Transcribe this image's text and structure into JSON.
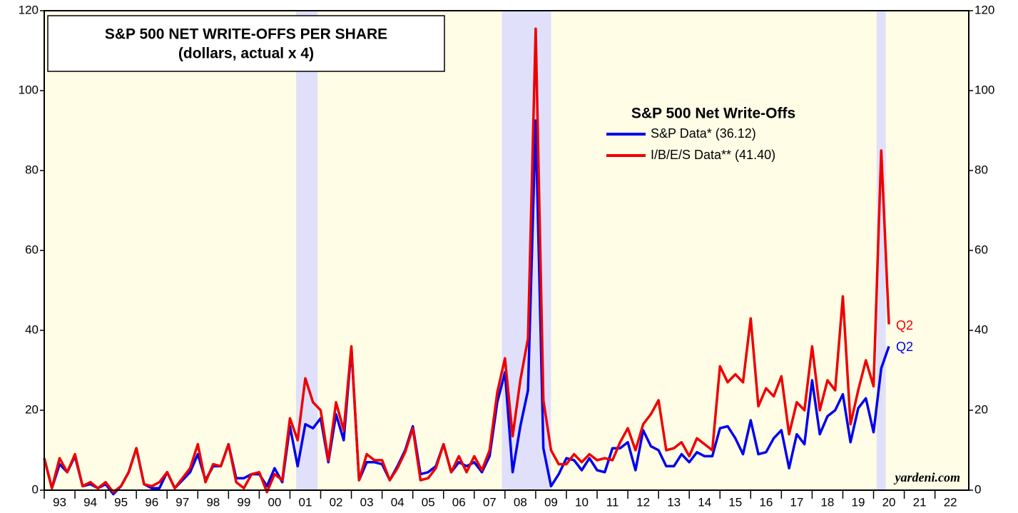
{
  "chart_data": {
    "type": "line",
    "title": "S&P 500 NET WRITE-OFFS PER SHARE",
    "subtitle": "(dollars, actual x 4)",
    "legend_title": "S&P 500 Net Write-Offs",
    "x": [
      1993,
      1993.25,
      1993.5,
      1993.75,
      1994,
      1994.25,
      1994.5,
      1994.75,
      1995,
      1995.25,
      1995.5,
      1995.75,
      1996,
      1996.25,
      1996.5,
      1996.75,
      1997,
      1997.25,
      1997.5,
      1997.75,
      1998,
      1998.25,
      1998.5,
      1998.75,
      1999,
      1999.25,
      1999.5,
      1999.75,
      2000,
      2000.25,
      2000.5,
      2000.75,
      2001,
      2001.25,
      2001.5,
      2001.75,
      2002,
      2002.25,
      2002.5,
      2002.75,
      2003,
      2003.25,
      2003.5,
      2003.75,
      2004,
      2004.25,
      2004.5,
      2004.75,
      2005,
      2005.25,
      2005.5,
      2005.75,
      2006,
      2006.25,
      2006.5,
      2006.75,
      2007,
      2007.25,
      2007.5,
      2007.75,
      2008,
      2008.25,
      2008.5,
      2008.75,
      2009,
      2009.25,
      2009.5,
      2009.75,
      2010,
      2010.25,
      2010.5,
      2010.75,
      2011,
      2011.25,
      2011.5,
      2011.75,
      2012,
      2012.25,
      2012.5,
      2012.75,
      2013,
      2013.25,
      2013.5,
      2013.75,
      2014,
      2014.25,
      2014.5,
      2014.75,
      2015,
      2015.25,
      2015.5,
      2015.75,
      2016,
      2016.25,
      2016.5,
      2016.75,
      2017,
      2017.25,
      2017.5,
      2017.75,
      2018,
      2018.25,
      2018.5,
      2018.75,
      2019,
      2019.25,
      2019.5,
      2019.75,
      2020,
      2020.25,
      2020.5
    ],
    "series": [
      {
        "name": "S&P Data* (36.12)",
        "color": "#0000ee",
        "values": [
          8,
          0.5,
          6.5,
          4.5,
          8.5,
          1,
          1.5,
          0.5,
          1.5,
          -1,
          1,
          4.5,
          10.5,
          1.5,
          0.5,
          0.5,
          4.5,
          0.5,
          2.5,
          4.5,
          9,
          2.5,
          6,
          6,
          11.5,
          3,
          3,
          4,
          4,
          1,
          5.5,
          2,
          16,
          6,
          16.5,
          15.5,
          18,
          7,
          19,
          12.5,
          35.5,
          2.5,
          7,
          7,
          6.5,
          2.5,
          6,
          10,
          16,
          4,
          4.5,
          6,
          11.5,
          4.5,
          7,
          6,
          7,
          4.5,
          8.5,
          22,
          29.5,
          4.5,
          16,
          25,
          92.5,
          10.5,
          1,
          4,
          8,
          7.5,
          5,
          8,
          5,
          4.5,
          10.5,
          10.5,
          12,
          5,
          15,
          11,
          10,
          6,
          6,
          9,
          7,
          9.5,
          8.5,
          8.5,
          15.5,
          16,
          13,
          9,
          17.5,
          9,
          9.5,
          13,
          15,
          5.5,
          14,
          11.5,
          27.5,
          14,
          18.5,
          20,
          24,
          12,
          20.5,
          23,
          14.5,
          30.5,
          36
        ]
      },
      {
        "name": "I/B/E/S Data** (41.40)",
        "color": "#ee0000",
        "values": [
          8,
          0.5,
          8,
          4.5,
          9,
          1,
          2,
          0.5,
          2,
          -0.5,
          1,
          4.5,
          10.5,
          1.5,
          1,
          2,
          4.5,
          0.5,
          3,
          5.5,
          11.5,
          2,
          6.5,
          6,
          11.5,
          2,
          0.5,
          4,
          4.5,
          -0.5,
          4,
          2.5,
          18,
          12.5,
          28,
          22,
          20,
          7.5,
          22,
          15,
          36,
          2.5,
          9,
          7.5,
          7.5,
          2.5,
          5.5,
          9.5,
          15.5,
          2.5,
          3,
          5.5,
          11.5,
          4.5,
          8.5,
          4.5,
          8.5,
          5,
          10,
          24.5,
          33,
          13.5,
          27.5,
          38,
          115.5,
          22.5,
          10,
          6.5,
          6.5,
          9,
          7,
          9,
          7.5,
          8,
          7.5,
          12,
          15.5,
          10,
          16.5,
          19,
          22.5,
          10,
          10.5,
          12,
          8.5,
          13,
          11.5,
          10,
          31,
          27,
          29,
          27,
          43,
          21,
          25.5,
          23.5,
          28.5,
          14,
          22,
          20,
          36,
          20,
          27.5,
          25,
          48.5,
          16.5,
          25,
          32.5,
          26,
          85,
          41.5
        ]
      }
    ],
    "recessions": [
      [
        2001.2,
        2001.9
      ],
      [
        2007.9,
        2009.5
      ],
      [
        2020.1,
        2020.4
      ]
    ],
    "xlim": [
      1993,
      2023.1
    ],
    "xticks": [
      {
        "value": 1993.5,
        "label": "93"
      },
      {
        "value": 1994.5,
        "label": "94"
      },
      {
        "value": 1995.5,
        "label": "95"
      },
      {
        "value": 1996.5,
        "label": "96"
      },
      {
        "value": 1997.5,
        "label": "97"
      },
      {
        "value": 1998.5,
        "label": "98"
      },
      {
        "value": 1999.5,
        "label": "99"
      },
      {
        "value": 2000.5,
        "label": "00"
      },
      {
        "value": 2001.5,
        "label": "01"
      },
      {
        "value": 2002.5,
        "label": "02"
      },
      {
        "value": 2003.5,
        "label": "03"
      },
      {
        "value": 2004.5,
        "label": "04"
      },
      {
        "value": 2005.5,
        "label": "05"
      },
      {
        "value": 2006.5,
        "label": "06"
      },
      {
        "value": 2007.5,
        "label": "07"
      },
      {
        "value": 2008.5,
        "label": "08"
      },
      {
        "value": 2009.5,
        "label": "09"
      },
      {
        "value": 2010.5,
        "label": "10"
      },
      {
        "value": 2011.5,
        "label": "11"
      },
      {
        "value": 2012.5,
        "label": "12"
      },
      {
        "value": 2013.5,
        "label": "13"
      },
      {
        "value": 2014.5,
        "label": "14"
      },
      {
        "value": 2015.5,
        "label": "15"
      },
      {
        "value": 2016.5,
        "label": "16"
      },
      {
        "value": 2017.5,
        "label": "17"
      },
      {
        "value": 2018.5,
        "label": "18"
      },
      {
        "value": 2019.5,
        "label": "19"
      },
      {
        "value": 2020.5,
        "label": "20"
      },
      {
        "value": 2021.5,
        "label": "21"
      },
      {
        "value": 2022.5,
        "label": "22"
      }
    ],
    "ylim": [
      0,
      120
    ],
    "yticks": [
      0,
      20,
      40,
      60,
      80,
      100,
      120
    ],
    "annotations": [
      "Q2",
      "Q2",
      "yardeni.com"
    ]
  }
}
